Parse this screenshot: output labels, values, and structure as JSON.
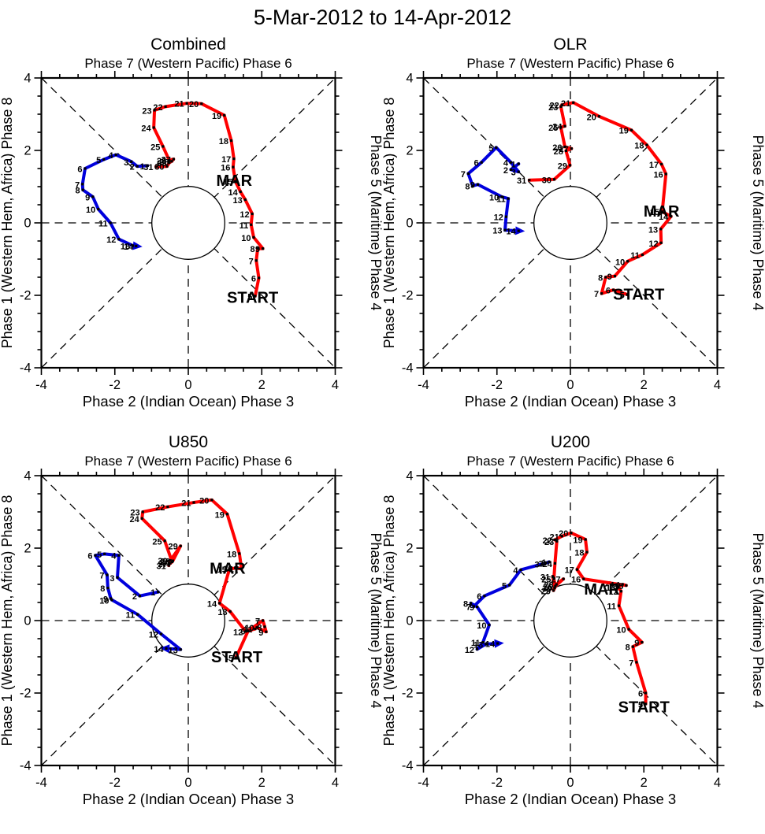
{
  "title": "5-Mar-2012 to 14-Apr-2012",
  "colors": {
    "march_line": "#ff0000",
    "april_line": "#0000dd",
    "axis": "#000000",
    "background": "#ffffff"
  },
  "annotations": {
    "start_label": "START",
    "march_label": "MAR"
  },
  "axes": {
    "top_label": "Phase 7 (Western Pacific) Phase 6",
    "bottom_label": "Phase 2 (Indian Ocean) Phase 3",
    "left_label": "Phase 1 (Western Hem, Africa) Phase 8",
    "right_label": "Phase 5 (Maritime) Phase 4",
    "xlim": [
      -4,
      4
    ],
    "ylim": [
      -4,
      4
    ],
    "major_ticks": [
      -4,
      -2,
      0,
      2,
      4
    ],
    "minor_tick_step": 0.5,
    "unit_circle_radius": 1
  },
  "chart_data": [
    {
      "type": "line",
      "title": "Combined",
      "start_label_pos": {
        "x": 1.75,
        "y": -2.05
      },
      "mar_label_pos": {
        "x": 1.25,
        "y": 1.17
      },
      "series": [
        {
          "name": "March",
          "color_key": "march_line",
          "points": [
            [
              5,
              1.82,
              -2.02
            ],
            [
              6,
              1.92,
              -1.52
            ],
            [
              7,
              1.85,
              -1.04
            ],
            [
              8,
              1.89,
              -0.71
            ],
            [
              9,
              2.03,
              -0.71
            ],
            [
              10,
              1.78,
              -0.4
            ],
            [
              11,
              1.71,
              -0.05
            ],
            [
              12,
              1.74,
              0.25
            ],
            [
              13,
              1.55,
              0.64
            ],
            [
              14,
              1.42,
              0.86
            ],
            [
              15,
              1.28,
              1.15
            ],
            [
              16,
              1.22,
              1.54
            ],
            [
              17,
              1.24,
              1.77
            ],
            [
              18,
              1.17,
              2.27
            ],
            [
              19,
              0.98,
              2.97
            ],
            [
              20,
              0.36,
              3.29
            ],
            [
              21,
              -0.04,
              3.3
            ],
            [
              22,
              -0.62,
              3.21
            ],
            [
              23,
              -0.92,
              3.11
            ],
            [
              24,
              -0.94,
              2.63
            ],
            [
              25,
              -0.69,
              2.11
            ],
            [
              26,
              -0.52,
              1.73
            ],
            [
              27,
              -0.4,
              1.76
            ],
            [
              28,
              -0.45,
              1.7
            ],
            [
              29,
              -0.52,
              1.66
            ],
            [
              30,
              -0.58,
              1.56
            ],
            [
              31,
              -0.88,
              1.55
            ]
          ]
        },
        {
          "name": "April",
          "color_key": "april_line",
          "arrow_end": true,
          "points": [
            [
              1,
              -1.11,
              1.58
            ],
            [
              2,
              -1.39,
              1.56
            ],
            [
              3,
              -1.55,
              1.69
            ],
            [
              4,
              -1.97,
              1.88
            ],
            [
              5,
              -2.3,
              1.75
            ],
            [
              6,
              -2.81,
              1.5
            ],
            [
              7,
              -2.88,
              1.07
            ],
            [
              8,
              -2.87,
              0.91
            ],
            [
              9,
              -2.6,
              0.72
            ],
            [
              10,
              -2.45,
              0.38
            ],
            [
              11,
              -2.12,
              0.0
            ],
            [
              12,
              -1.89,
              -0.45
            ],
            [
              13,
              -1.51,
              -0.63
            ],
            [
              14,
              -1.42,
              -0.64
            ]
          ]
        }
      ]
    },
    {
      "type": "line",
      "title": "OLR",
      "start_label_pos": {
        "x": 1.86,
        "y": -1.97
      },
      "mar_label_pos": {
        "x": 2.48,
        "y": 0.33
      },
      "series": [
        {
          "name": "March",
          "color_key": "march_line",
          "points": [
            [
              5,
              1.55,
              -1.98
            ],
            [
              6,
              1.17,
              -1.85
            ],
            [
              7,
              0.85,
              -1.95
            ],
            [
              8,
              0.96,
              -1.5
            ],
            [
              9,
              1.21,
              -1.47
            ],
            [
              10,
              1.56,
              -1.06
            ],
            [
              11,
              1.96,
              -0.88
            ],
            [
              12,
              2.47,
              -0.55
            ],
            [
              13,
              2.46,
              -0.17
            ],
            [
              14,
              2.74,
              0.18
            ],
            [
              15,
              2.5,
              0.31
            ],
            [
              16,
              2.6,
              1.35
            ],
            [
              17,
              2.48,
              1.62
            ],
            [
              18,
              2.08,
              2.15
            ],
            [
              19,
              1.66,
              2.56
            ],
            [
              20,
              0.78,
              2.94
            ],
            [
              21,
              0.08,
              3.32
            ],
            [
              22,
              -0.23,
              3.26
            ],
            [
              23,
              -0.26,
              3.21
            ],
            [
              24,
              -0.15,
              2.67
            ],
            [
              25,
              -0.26,
              2.64
            ],
            [
              26,
              -0.15,
              2.1
            ],
            [
              27,
              0.03,
              2.05
            ],
            [
              28,
              -0.12,
              1.99
            ],
            [
              29,
              -0.01,
              1.59
            ],
            [
              30,
              -0.44,
              1.2
            ],
            [
              31,
              -1.12,
              1.18
            ]
          ]
        },
        {
          "name": "April",
          "color_key": "april_line",
          "arrow_end": true,
          "points": [
            [
              1,
              -1.41,
              1.63
            ],
            [
              2,
              -1.62,
              1.47
            ],
            [
              3,
              -1.41,
              1.41
            ],
            [
              4,
              -1.62,
              1.67
            ],
            [
              5,
              -2.02,
              2.08
            ],
            [
              6,
              -2.42,
              1.67
            ],
            [
              7,
              -2.78,
              1.36
            ],
            [
              8,
              -2.66,
              1.02
            ],
            [
              9,
              -2.52,
              1.06
            ],
            [
              10,
              -1.87,
              0.72
            ],
            [
              11,
              -1.69,
              0.67
            ],
            [
              12,
              -1.75,
              0.17
            ],
            [
              13,
              -1.78,
              -0.2
            ],
            [
              14,
              -1.41,
              -0.22
            ]
          ]
        }
      ]
    },
    {
      "type": "line",
      "title": "U850",
      "start_label_pos": {
        "x": 1.32,
        "y": -1.0
      },
      "mar_label_pos": {
        "x": 1.07,
        "y": 1.45
      },
      "series": [
        {
          "name": "March",
          "color_key": "march_line",
          "points": [
            [
              5,
              1.3,
              -1.02
            ],
            [
              6,
              1.63,
              -0.28
            ],
            [
              7,
              2.03,
              0.0
            ],
            [
              8,
              2.08,
              -0.17
            ],
            [
              9,
              2.12,
              -0.31
            ],
            [
              10,
              1.87,
              -0.19
            ],
            [
              11,
              1.82,
              -0.23
            ],
            [
              12,
              1.56,
              -0.3
            ],
            [
              13,
              1.14,
              0.25
            ],
            [
              14,
              0.85,
              0.48
            ],
            [
              15,
              1.12,
              1.42
            ],
            [
              16,
              1.28,
              1.45
            ],
            [
              17,
              1.45,
              1.43
            ],
            [
              18,
              1.39,
              1.85
            ],
            [
              19,
              1.06,
              2.94
            ],
            [
              20,
              0.64,
              3.33
            ],
            [
              21,
              0.15,
              3.26
            ],
            [
              22,
              -0.56,
              3.14
            ],
            [
              23,
              -1.24,
              3.0
            ],
            [
              24,
              -1.26,
              2.82
            ],
            [
              25,
              -0.64,
              2.2
            ],
            [
              26,
              -0.44,
              1.62
            ],
            [
              27,
              -0.49,
              1.58
            ],
            [
              28,
              -0.42,
              1.65
            ],
            [
              29,
              -0.21,
              2.06
            ],
            [
              30,
              -0.49,
              1.66
            ],
            [
              31,
              -0.53,
              1.52
            ]
          ]
        },
        {
          "name": "April",
          "color_key": "april_line",
          "arrow_end": true,
          "points": [
            [
              1,
              -0.82,
              0.79
            ],
            [
              2,
              -1.32,
              0.68
            ],
            [
              3,
              -1.93,
              1.19
            ],
            [
              4,
              -1.89,
              1.8
            ],
            [
              5,
              -2.28,
              1.84
            ],
            [
              6,
              -2.53,
              1.8
            ],
            [
              7,
              -2.21,
              1.26
            ],
            [
              8,
              -2.19,
              0.9
            ],
            [
              9,
              -2.11,
              0.61
            ],
            [
              10,
              -2.08,
              0.57
            ],
            [
              11,
              -1.38,
              0.17
            ],
            [
              12,
              -0.74,
              -0.37
            ],
            [
              13,
              -0.21,
              -0.8
            ],
            [
              14,
              -0.6,
              -0.77
            ]
          ]
        }
      ]
    },
    {
      "type": "line",
      "title": "U200",
      "start_label_pos": {
        "x": 2.0,
        "y": -2.38
      },
      "mar_label_pos": {
        "x": 0.86,
        "y": 0.87
      },
      "series": [
        {
          "name": "March",
          "color_key": "march_line",
          "points": [
            [
              5,
              2.05,
              -2.3
            ],
            [
              6,
              2.05,
              -2.0
            ],
            [
              7,
              1.8,
              -1.15
            ],
            [
              8,
              1.7,
              -0.72
            ],
            [
              9,
              1.95,
              -0.6
            ],
            [
              10,
              1.59,
              -0.24
            ],
            [
              11,
              1.32,
              0.41
            ],
            [
              12,
              1.38,
              0.81
            ],
            [
              13,
              1.3,
              0.92
            ],
            [
              14,
              1.42,
              1.0
            ],
            [
              15,
              1.52,
              0.97
            ],
            [
              16,
              0.36,
              1.15
            ],
            [
              17,
              0.18,
              1.41
            ],
            [
              18,
              0.45,
              1.89
            ],
            [
              19,
              0.41,
              2.24
            ],
            [
              20,
              0.02,
              2.42
            ],
            [
              21,
              -0.23,
              2.33
            ],
            [
              22,
              -0.42,
              2.23
            ],
            [
              23,
              -0.37,
              2.19
            ],
            [
              24,
              -0.42,
              1.58
            ],
            [
              25,
              -0.45,
              1.15
            ],
            [
              26,
              -0.41,
              0.95
            ],
            [
              27,
              -0.19,
              1.15
            ],
            [
              28,
              -0.38,
              1.0
            ],
            [
              29,
              -0.46,
              0.83
            ],
            [
              30,
              -0.43,
              0.9
            ],
            [
              31,
              -0.48,
              1.22
            ]
          ]
        },
        {
          "name": "April",
          "color_key": "april_line",
          "arrow_end": true,
          "points": [
            [
              1,
              -0.58,
              1.62
            ],
            [
              2,
              -0.66,
              1.59
            ],
            [
              3,
              -0.77,
              1.56
            ],
            [
              4,
              -1.35,
              1.4
            ],
            [
              5,
              -1.66,
              0.98
            ],
            [
              6,
              -2.34,
              0.68
            ],
            [
              7,
              -2.63,
              0.39
            ],
            [
              8,
              -2.71,
              0.48
            ],
            [
              9,
              -2.54,
              0.38
            ],
            [
              10,
              -2.21,
              -0.12
            ],
            [
              11,
              -2.38,
              -0.6
            ],
            [
              12,
              -2.54,
              -0.79
            ],
            [
              13,
              -2.3,
              -0.65
            ],
            [
              14,
              -1.98,
              -0.63
            ]
          ]
        }
      ]
    }
  ]
}
